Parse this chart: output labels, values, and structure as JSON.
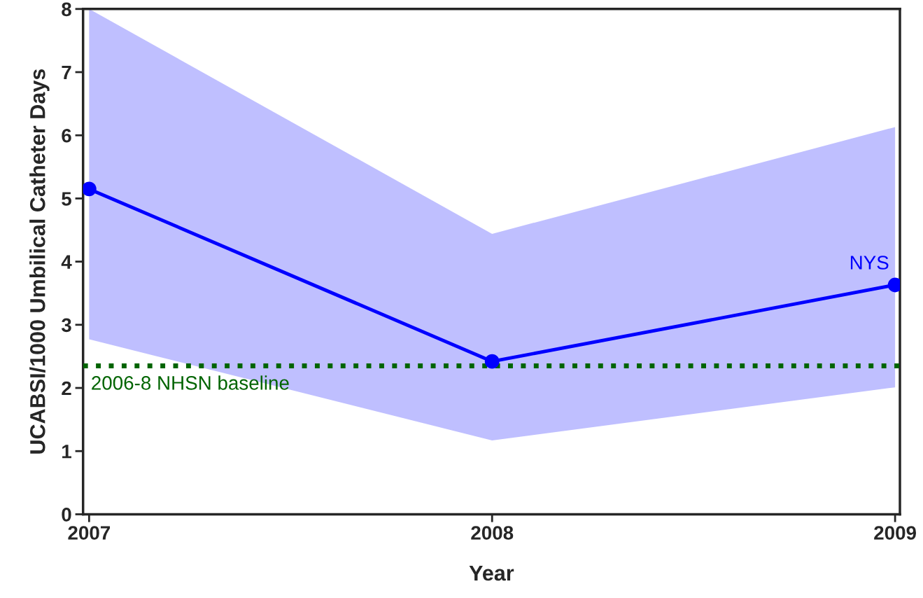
{
  "chart_data": {
    "type": "line",
    "xlabel": "Year",
    "ylabel": "UCABSI/1000 Umbilical Catheter Days",
    "x": [
      2007,
      2008,
      2009
    ],
    "xlim": [
      2006.985,
      2009.012
    ],
    "xticks": [
      2007,
      2008,
      2009
    ],
    "ylim": [
      0,
      8
    ],
    "yticks": [
      0,
      1,
      2,
      3,
      4,
      5,
      6,
      7,
      8
    ],
    "series": [
      {
        "name": "NYS",
        "color": "#0000ff",
        "values": [
          5.15,
          2.42,
          3.63
        ],
        "lower": [
          2.77,
          1.17,
          2.01
        ],
        "upper": [
          8,
          4.44,
          6.13
        ]
      }
    ],
    "ref_lines": [
      {
        "axis": "y",
        "value": 2.35,
        "label": "2006-8 NHSN baseline",
        "color": "#006400",
        "line_style": "dotted"
      }
    ],
    "marker": "circle",
    "line_style": "solid",
    "grid": false,
    "legend": false
  }
}
